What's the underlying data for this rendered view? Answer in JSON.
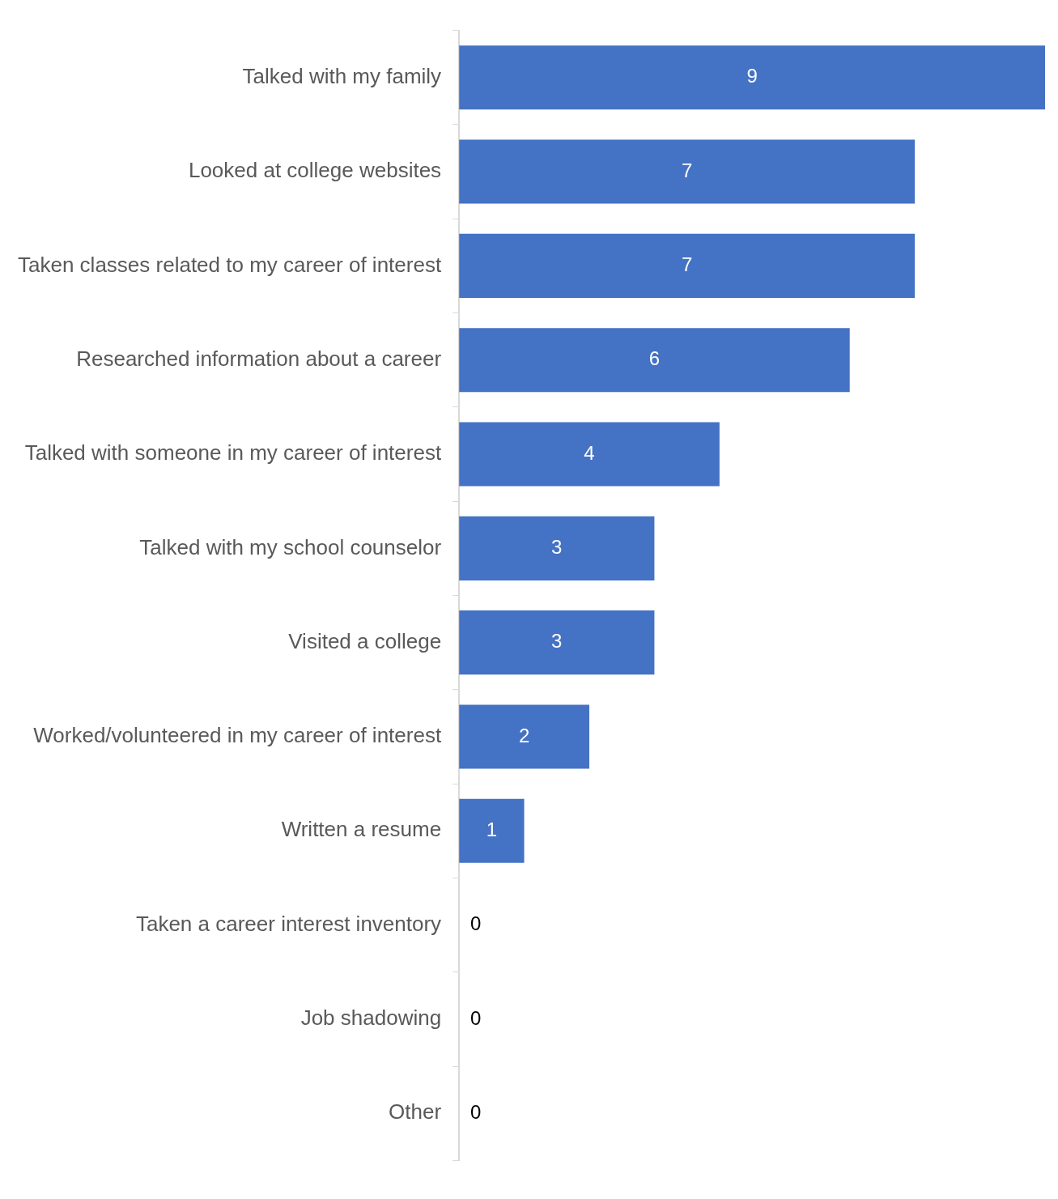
{
  "chart_data": {
    "type": "bar",
    "orientation": "horizontal",
    "categories": [
      "Talked with my family",
      "Looked at college websites",
      "Taken classes related to my career of interest",
      "Researched information about a career",
      "Talked with someone in my career of interest",
      "Talked with my school counselor",
      "Visited a college",
      "Worked/volunteered in my career of interest",
      "Written a resume",
      "Taken a career interest inventory",
      "Job shadowing",
      "Other"
    ],
    "values": [
      9,
      7,
      7,
      6,
      4,
      3,
      3,
      2,
      1,
      0,
      0,
      0
    ],
    "color": "#4472c4",
    "data_labels": true,
    "legend": false
  }
}
